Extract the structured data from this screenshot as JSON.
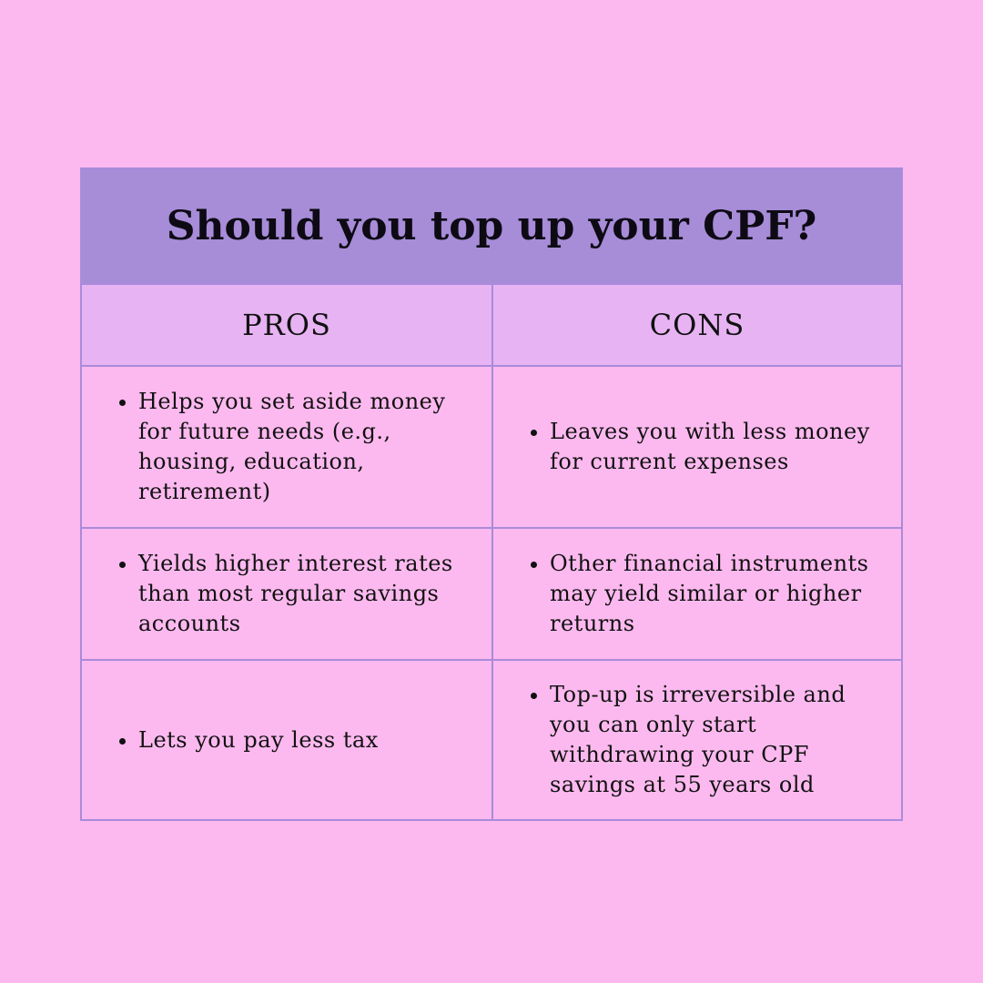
{
  "title": "Should you top up your CPF?",
  "columns": {
    "pros": "PROS",
    "cons": "CONS"
  },
  "rows": [
    {
      "pro": "Helps you set aside money for future needs (e.g., housing, education, retirement)",
      "con": "Leaves you with less money for current expenses"
    },
    {
      "pro": "Yields higher interest rates than most regular savings accounts",
      "con": "Other financial instruments may yield similar or higher returns"
    },
    {
      "pro": "Lets you pay less tax",
      "con": "Top-up is irreversible and you can only start withdrawing your CPF savings at 55 years old"
    }
  ],
  "colors": {
    "background": "#fcb9ef",
    "title_bg": "#a78cd8",
    "header_bg": "#e7b3f3",
    "border": "#a98bdb"
  }
}
